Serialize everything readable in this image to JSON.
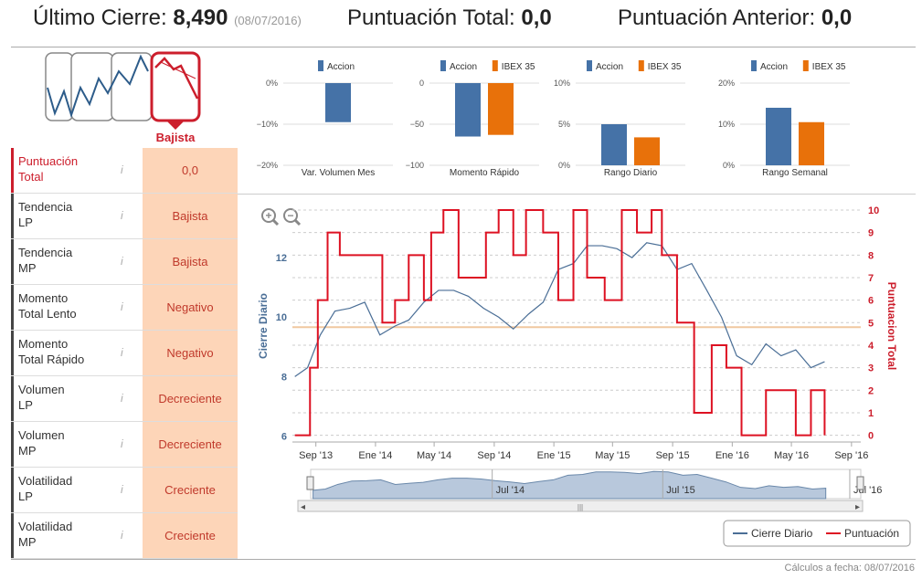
{
  "header": {
    "ultimo_cierre_label": "Último Cierre:",
    "ultimo_cierre_value": "8,490",
    "ultimo_cierre_date": "(08/07/2016)",
    "puntuacion_total_label": "Puntuación Total:",
    "puntuacion_total_value": "0,0",
    "puntuacion_anterior_label": "Puntuación Anterior:",
    "puntuacion_anterior_value": "0,0"
  },
  "trend_logo": {
    "label": "Bajista",
    "accent": "#cc1e2c"
  },
  "indicators": [
    {
      "label_line1": "Puntuación",
      "label_line2": "Total",
      "info": "i",
      "value": "0,0"
    },
    {
      "label_line1": "Tendencia",
      "label_line2": "LP",
      "info": "i",
      "value": "Bajista"
    },
    {
      "label_line1": "Tendencia",
      "label_line2": "MP",
      "info": "i",
      "value": "Bajista"
    },
    {
      "label_line1": "Momento",
      "label_line2": "Total Lento",
      "info": "i",
      "value": "Negativo"
    },
    {
      "label_line1": "Momento",
      "label_line2": "Total Rápido",
      "info": "i",
      "value": "Negativo"
    },
    {
      "label_line1": "Volumen",
      "label_line2": "LP",
      "info": "i",
      "value": "Decreciente"
    },
    {
      "label_line1": "Volumen",
      "label_line2": "MP",
      "info": "i",
      "value": "Decreciente"
    },
    {
      "label_line1": "Volatilidad",
      "label_line2": "LP",
      "info": "i",
      "value": "Creciente"
    },
    {
      "label_line1": "Volatilidad",
      "label_line2": "MP",
      "info": "i",
      "value": "Creciente"
    }
  ],
  "footer": {
    "text": "Cálculos a fecha: 08/07/2016"
  },
  "zoom": {
    "in_label": "+",
    "out_label": "−"
  },
  "navigator": {
    "ticks": [
      "Jul '14",
      "Jul '15",
      "Jul '16"
    ],
    "scroll_grip": "|||"
  },
  "chart_data": [
    {
      "type": "bar",
      "xlabel": "Var. Volumen Mes",
      "series": [
        {
          "name": "Accion",
          "color": "#4572a7",
          "values": [
            -9.5
          ]
        }
      ],
      "ylim": [
        -20,
        0
      ],
      "yticks": [
        "0%",
        "−10%",
        "−20%"
      ],
      "ytick_values": [
        0,
        -10,
        -20
      ]
    },
    {
      "type": "bar",
      "xlabel": "Momento Rápido",
      "series": [
        {
          "name": "Accion",
          "color": "#4572a7",
          "values": [
            -65
          ]
        },
        {
          "name": "IBEX 35",
          "color": "#e8710a",
          "values": [
            -63
          ]
        }
      ],
      "ylim": [
        -100,
        0
      ],
      "yticks": [
        "0",
        "−50",
        "−100"
      ],
      "ytick_values": [
        0,
        -50,
        -100
      ]
    },
    {
      "type": "bar",
      "xlabel": "Rango Diario",
      "series": [
        {
          "name": "Accion",
          "color": "#4572a7",
          "values": [
            5
          ]
        },
        {
          "name": "IBEX 35",
          "color": "#e8710a",
          "values": [
            3.4
          ]
        }
      ],
      "ylim": [
        0,
        10
      ],
      "yticks": [
        "10%",
        "5%",
        "0%"
      ],
      "ytick_values": [
        10,
        5,
        0
      ]
    },
    {
      "type": "bar",
      "xlabel": "Rango Semanal",
      "series": [
        {
          "name": "Accion",
          "color": "#4572a7",
          "values": [
            14
          ]
        },
        {
          "name": "IBEX 35",
          "color": "#e8710a",
          "values": [
            10.5
          ]
        }
      ],
      "ylim": [
        0,
        20
      ],
      "yticks": [
        "20%",
        "10%",
        "0%"
      ],
      "ytick_values": [
        20,
        10,
        0
      ]
    },
    {
      "type": "line",
      "ylabel": "Cierre Diario",
      "y2label": "Puntuacion Total",
      "ylim": [
        5.8,
        13.6
      ],
      "y2lim": [
        -0.3,
        10
      ],
      "yticks": [
        6,
        8,
        10,
        12
      ],
      "y2ticks": [
        0,
        1,
        2,
        3,
        4,
        5,
        6,
        7,
        8,
        9,
        10
      ],
      "x_range": [
        "2013-07-15",
        "2016-09-20"
      ],
      "xticks": [
        {
          "label": "Sep '13",
          "date": "2013-09-01"
        },
        {
          "label": "Ene '14",
          "date": "2014-01-01"
        },
        {
          "label": "May '14",
          "date": "2014-05-01"
        },
        {
          "label": "Sep '14",
          "date": "2014-09-01"
        },
        {
          "label": "Ene '15",
          "date": "2015-01-01"
        },
        {
          "label": "May '15",
          "date": "2015-05-01"
        },
        {
          "label": "Sep '15",
          "date": "2015-09-01"
        },
        {
          "label": "Ene '16",
          "date": "2016-01-01"
        },
        {
          "label": "May '16",
          "date": "2016-05-01"
        },
        {
          "label": "Sep '16",
          "date": "2016-09-01"
        }
      ],
      "reference_line": {
        "value": 4.8,
        "axis": "y2",
        "color": "#f0c8a0"
      },
      "legend": {
        "position": "bottom-right",
        "items": [
          "Cierre Diario",
          "Puntuación"
        ]
      },
      "series": [
        {
          "name": "Cierre Diario",
          "axis": "y",
          "color": "#4a6e96",
          "x": [
            "2013-07-20",
            "2013-08-15",
            "2013-09-10",
            "2013-10-10",
            "2013-11-10",
            "2013-12-10",
            "2014-01-10",
            "2014-02-10",
            "2014-03-10",
            "2014-04-10",
            "2014-05-10",
            "2014-06-10",
            "2014-07-10",
            "2014-08-10",
            "2014-09-10",
            "2014-10-10",
            "2014-11-10",
            "2014-12-10",
            "2015-01-10",
            "2015-02-10",
            "2015-03-10",
            "2015-04-10",
            "2015-05-10",
            "2015-06-10",
            "2015-07-10",
            "2015-08-10",
            "2015-09-10",
            "2015-10-10",
            "2015-11-10",
            "2015-12-10",
            "2016-01-10",
            "2016-02-10",
            "2016-03-10",
            "2016-04-10",
            "2016-05-10",
            "2016-06-10",
            "2016-07-08"
          ],
          "y": [
            8.0,
            8.3,
            9.4,
            10.2,
            10.3,
            10.5,
            9.4,
            9.7,
            9.9,
            10.5,
            10.9,
            10.9,
            10.7,
            10.3,
            10.0,
            9.6,
            10.1,
            10.5,
            11.6,
            11.8,
            12.4,
            12.4,
            12.3,
            12.0,
            12.5,
            12.4,
            11.6,
            11.8,
            10.9,
            10.0,
            8.7,
            8.4,
            9.1,
            8.7,
            8.9,
            8.3,
            8.5
          ]
        },
        {
          "name": "Puntuación",
          "axis": "y2",
          "color": "#dd1122",
          "x": [
            "2013-07-20",
            "2013-08-20",
            "2013-09-05",
            "2013-09-25",
            "2013-10-20",
            "2014-01-15",
            "2014-02-10",
            "2014-03-10",
            "2014-04-10",
            "2014-04-25",
            "2014-05-20",
            "2014-06-20",
            "2014-07-20",
            "2014-08-15",
            "2014-09-10",
            "2014-10-10",
            "2014-11-05",
            "2014-12-10",
            "2015-01-10",
            "2015-02-10",
            "2015-03-10",
            "2015-04-15",
            "2015-05-20",
            "2015-06-20",
            "2015-07-20",
            "2015-08-10",
            "2015-09-10",
            "2015-10-15",
            "2015-11-20",
            "2015-12-20",
            "2016-01-20",
            "2016-02-15",
            "2016-03-10",
            "2016-04-10",
            "2016-05-10",
            "2016-06-10",
            "2016-07-08"
          ],
          "y": [
            0,
            3,
            6,
            9,
            8,
            5,
            6,
            8,
            6,
            9,
            10,
            7,
            7,
            9,
            10,
            8,
            10,
            9,
            6,
            10,
            7,
            6,
            10,
            9,
            10,
            8,
            5,
            1,
            4,
            3,
            0,
            0,
            2,
            2,
            0,
            2,
            0
          ]
        }
      ]
    }
  ]
}
